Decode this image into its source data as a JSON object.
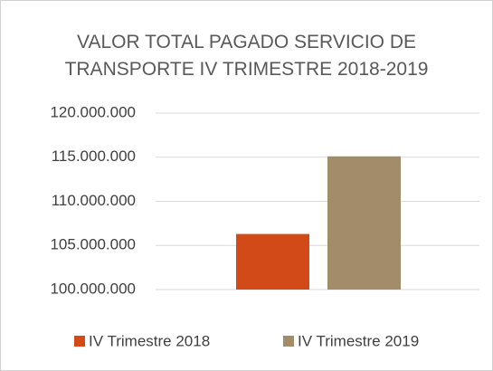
{
  "chart_data": {
    "type": "bar",
    "title": "VALOR TOTAL PAGADO SERVICIO DE TRANSPORTE IV TRIMESTRE 2018-2019",
    "categories": [
      null
    ],
    "series": [
      {
        "name": "IV Trimestre 2018",
        "color": "#d24a17",
        "values": [
          106300000
        ]
      },
      {
        "name": "IV Trimestre 2019",
        "color": "#a38c6a",
        "values": [
          115100000
        ]
      }
    ],
    "ylim": [
      100000000,
      120000000
    ],
    "yticks": [
      {
        "value": 100000000,
        "label": "100.000.000"
      },
      {
        "value": 105000000,
        "label": "105.000.000"
      },
      {
        "value": 110000000,
        "label": "110.000.000"
      },
      {
        "value": 115000000,
        "label": "115.000.000"
      },
      {
        "value": 120000000,
        "label": "120.000.000"
      }
    ],
    "grid": true,
    "legend": "bottom"
  }
}
